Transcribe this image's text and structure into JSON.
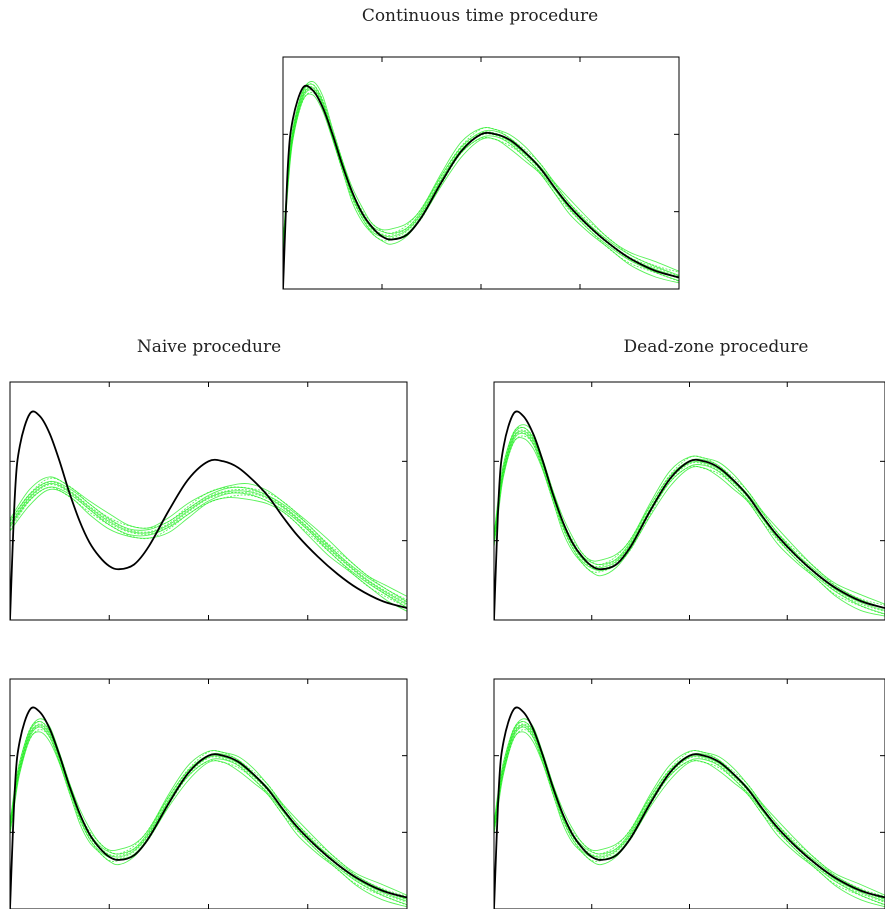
{
  "chart_data": [
    {
      "type": "line",
      "title": "Continuous time procedure",
      "xlabel": "",
      "ylabel": "",
      "xlim": [
        0,
        4
      ],
      "ylim": [
        0,
        3
      ],
      "grid": false,
      "legend": "none",
      "colors": {
        "true_curve": "#000000",
        "estimates": "#22ee22"
      },
      "series": [
        {
          "style": "true",
          "x": [
            0,
            0.05,
            0.1,
            0.2,
            0.3,
            0.4,
            0.5,
            0.6,
            0.7,
            0.8,
            0.9,
            1.0,
            1.1,
            1.25,
            1.4,
            1.6,
            1.8,
            2.0,
            2.15,
            2.3,
            2.45,
            2.6,
            2.75,
            2.9,
            3.1,
            3.3,
            3.5,
            3.75,
            4.0
          ],
          "y": [
            0,
            1.6,
            2.2,
            2.6,
            2.57,
            2.35,
            2.0,
            1.6,
            1.25,
            0.98,
            0.8,
            0.68,
            0.64,
            0.7,
            0.93,
            1.38,
            1.78,
            2.0,
            2.0,
            1.92,
            1.76,
            1.56,
            1.3,
            1.06,
            0.8,
            0.58,
            0.4,
            0.24,
            0.15
          ]
        },
        {
          "style": "estimate-bundle",
          "x": [
            0,
            0.05,
            0.1,
            0.2,
            0.3,
            0.4,
            0.5,
            0.6,
            0.7,
            0.8,
            0.9,
            1.0,
            1.1,
            1.25,
            1.4,
            1.6,
            1.8,
            2.0,
            2.15,
            2.3,
            2.45,
            2.6,
            2.75,
            2.9,
            3.1,
            3.3,
            3.5,
            3.75,
            4.0
          ],
          "y": [
            0.5,
            1.4,
            2.0,
            2.5,
            2.6,
            2.4,
            2.0,
            1.6,
            1.22,
            0.96,
            0.78,
            0.7,
            0.68,
            0.76,
            0.98,
            1.42,
            1.8,
            2.0,
            2.0,
            1.9,
            1.74,
            1.55,
            1.3,
            1.06,
            0.8,
            0.58,
            0.4,
            0.26,
            0.15
          ],
          "spread": 0.08
        }
      ]
    },
    {
      "type": "line",
      "title": "Naive procedure",
      "xlabel": "",
      "ylabel": "",
      "xlim": [
        0,
        4
      ],
      "ylim": [
        0,
        3
      ],
      "grid": false,
      "legend": "none",
      "colors": {
        "true_curve": "#000000",
        "estimates": "#22ee22"
      },
      "series": [
        {
          "style": "true",
          "x": [
            0,
            0.05,
            0.1,
            0.2,
            0.3,
            0.4,
            0.5,
            0.6,
            0.7,
            0.8,
            0.9,
            1.0,
            1.1,
            1.25,
            1.4,
            1.6,
            1.8,
            2.0,
            2.15,
            2.3,
            2.45,
            2.6,
            2.75,
            2.9,
            3.1,
            3.3,
            3.5,
            3.75,
            4.0
          ],
          "y": [
            0,
            1.6,
            2.2,
            2.6,
            2.57,
            2.35,
            2.0,
            1.6,
            1.25,
            0.98,
            0.8,
            0.68,
            0.64,
            0.7,
            0.93,
            1.38,
            1.78,
            2.0,
            2.0,
            1.92,
            1.76,
            1.56,
            1.3,
            1.06,
            0.8,
            0.58,
            0.4,
            0.24,
            0.15
          ]
        },
        {
          "style": "estimate-bundle",
          "x": [
            0,
            0.2,
            0.4,
            0.6,
            0.8,
            1.0,
            1.2,
            1.4,
            1.6,
            1.8,
            2.0,
            2.2,
            2.4,
            2.6,
            2.8,
            3.0,
            3.2,
            3.4,
            3.6,
            3.8,
            4.0
          ],
          "y": [
            1.2,
            1.55,
            1.72,
            1.62,
            1.42,
            1.24,
            1.12,
            1.1,
            1.2,
            1.38,
            1.54,
            1.62,
            1.62,
            1.54,
            1.38,
            1.16,
            0.92,
            0.7,
            0.5,
            0.34,
            0.2
          ],
          "spread": 0.08
        }
      ]
    },
    {
      "type": "line",
      "title": "Dead-zone procedure",
      "xlabel": "",
      "ylabel": "",
      "xlim": [
        0,
        4
      ],
      "ylim": [
        0,
        3
      ],
      "grid": false,
      "legend": "none",
      "colors": {
        "true_curve": "#000000",
        "estimates": "#22ee22"
      },
      "series": [
        {
          "style": "true",
          "x": [
            0,
            0.05,
            0.1,
            0.2,
            0.3,
            0.4,
            0.5,
            0.6,
            0.7,
            0.8,
            0.9,
            1.0,
            1.1,
            1.25,
            1.4,
            1.6,
            1.8,
            2.0,
            2.15,
            2.3,
            2.45,
            2.6,
            2.75,
            2.9,
            3.1,
            3.3,
            3.5,
            3.75,
            4.0
          ],
          "y": [
            0,
            1.6,
            2.2,
            2.6,
            2.57,
            2.35,
            2.0,
            1.6,
            1.25,
            0.98,
            0.8,
            0.68,
            0.64,
            0.7,
            0.93,
            1.38,
            1.78,
            2.0,
            2.0,
            1.92,
            1.76,
            1.56,
            1.3,
            1.06,
            0.8,
            0.58,
            0.4,
            0.24,
            0.15
          ]
        },
        {
          "style": "estimate-bundle",
          "x": [
            0,
            0.05,
            0.1,
            0.2,
            0.3,
            0.4,
            0.5,
            0.6,
            0.7,
            0.8,
            0.9,
            1.0,
            1.1,
            1.25,
            1.4,
            1.6,
            1.8,
            2.0,
            2.15,
            2.3,
            2.45,
            2.6,
            2.75,
            2.9,
            3.1,
            3.3,
            3.5,
            3.75,
            4.0
          ],
          "y": [
            1.0,
            1.5,
            1.9,
            2.3,
            2.38,
            2.26,
            1.95,
            1.58,
            1.22,
            0.96,
            0.78,
            0.68,
            0.66,
            0.74,
            0.96,
            1.4,
            1.78,
            1.98,
            1.98,
            1.9,
            1.74,
            1.55,
            1.3,
            1.06,
            0.8,
            0.58,
            0.38,
            0.22,
            0.12
          ],
          "spread": 0.08
        }
      ]
    },
    {
      "type": "line",
      "title": "",
      "xlabel": "",
      "ylabel": "",
      "xlim": [
        0,
        4
      ],
      "ylim": [
        0,
        3
      ],
      "grid": false,
      "legend": "none",
      "colors": {
        "true_curve": "#000000",
        "estimates": "#22ee22"
      },
      "series": [
        {
          "style": "true",
          "x": [
            0,
            0.05,
            0.1,
            0.2,
            0.3,
            0.4,
            0.5,
            0.6,
            0.7,
            0.8,
            0.9,
            1.0,
            1.1,
            1.25,
            1.4,
            1.6,
            1.8,
            2.0,
            2.15,
            2.3,
            2.45,
            2.6,
            2.75,
            2.9,
            3.1,
            3.3,
            3.5,
            3.75,
            4.0
          ],
          "y": [
            0,
            1.6,
            2.2,
            2.6,
            2.57,
            2.35,
            2.0,
            1.6,
            1.25,
            0.98,
            0.8,
            0.68,
            0.64,
            0.7,
            0.93,
            1.38,
            1.78,
            2.0,
            2.0,
            1.92,
            1.76,
            1.56,
            1.3,
            1.06,
            0.8,
            0.58,
            0.4,
            0.24,
            0.15
          ]
        },
        {
          "style": "estimate-bundle",
          "x": [
            0,
            0.05,
            0.1,
            0.2,
            0.3,
            0.4,
            0.5,
            0.6,
            0.7,
            0.8,
            0.9,
            1.0,
            1.1,
            1.25,
            1.4,
            1.6,
            1.8,
            2.0,
            2.15,
            2.3,
            2.45,
            2.6,
            2.75,
            2.9,
            3.1,
            3.3,
            3.5,
            3.75,
            4.0
          ],
          "y": [
            1.05,
            1.5,
            1.85,
            2.28,
            2.4,
            2.28,
            1.96,
            1.58,
            1.22,
            0.96,
            0.8,
            0.7,
            0.68,
            0.76,
            0.98,
            1.42,
            1.78,
            1.98,
            1.98,
            1.9,
            1.74,
            1.55,
            1.3,
            1.06,
            0.8,
            0.58,
            0.38,
            0.22,
            0.1
          ],
          "spread": 0.08
        }
      ]
    },
    {
      "type": "line",
      "title": "",
      "xlabel": "",
      "ylabel": "",
      "xlim": [
        0,
        4
      ],
      "ylim": [
        0,
        3
      ],
      "grid": false,
      "legend": "none",
      "colors": {
        "true_curve": "#000000",
        "estimates": "#22ee22"
      },
      "series": [
        {
          "style": "true",
          "x": [
            0,
            0.05,
            0.1,
            0.2,
            0.3,
            0.4,
            0.5,
            0.6,
            0.7,
            0.8,
            0.9,
            1.0,
            1.1,
            1.25,
            1.4,
            1.6,
            1.8,
            2.0,
            2.15,
            2.3,
            2.45,
            2.6,
            2.75,
            2.9,
            3.1,
            3.3,
            3.5,
            3.75,
            4.0
          ],
          "y": [
            0,
            1.6,
            2.2,
            2.6,
            2.57,
            2.35,
            2.0,
            1.6,
            1.25,
            0.98,
            0.8,
            0.68,
            0.64,
            0.7,
            0.93,
            1.38,
            1.78,
            2.0,
            2.0,
            1.92,
            1.76,
            1.56,
            1.3,
            1.06,
            0.8,
            0.58,
            0.4,
            0.24,
            0.15
          ]
        },
        {
          "style": "estimate-bundle",
          "x": [
            0,
            0.05,
            0.1,
            0.2,
            0.3,
            0.4,
            0.5,
            0.6,
            0.7,
            0.8,
            0.9,
            1.0,
            1.1,
            1.25,
            1.4,
            1.6,
            1.8,
            2.0,
            2.15,
            2.3,
            2.45,
            2.6,
            2.75,
            2.9,
            3.1,
            3.3,
            3.5,
            3.75,
            4.0
          ],
          "y": [
            1.05,
            1.5,
            1.85,
            2.28,
            2.4,
            2.28,
            1.96,
            1.58,
            1.22,
            0.96,
            0.8,
            0.7,
            0.68,
            0.76,
            0.98,
            1.42,
            1.78,
            1.98,
            1.98,
            1.9,
            1.74,
            1.55,
            1.3,
            1.06,
            0.8,
            0.58,
            0.38,
            0.22,
            0.1
          ],
          "spread": 0.08
        }
      ]
    }
  ]
}
